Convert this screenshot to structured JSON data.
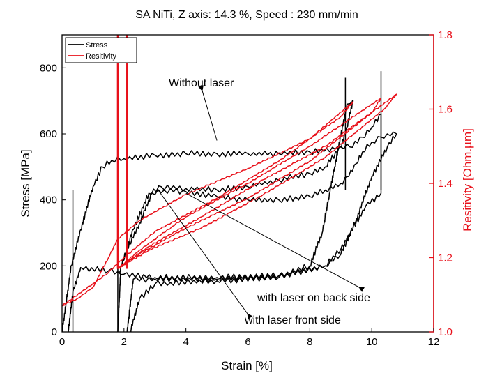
{
  "chart_data": {
    "type": "line",
    "title": "SA NiTi, Z axis: 14.3 %, Speed : 230 mm/min",
    "xlabel": "Strain [%]",
    "ylabel": "Stress [MPa]",
    "y2label": "Resitivity [Ohm.µm]",
    "xlim": [
      0,
      12
    ],
    "ylim": [
      0,
      900
    ],
    "y2lim": [
      1.0,
      1.8
    ],
    "xticks": [
      "0",
      "2",
      "4",
      "6",
      "8",
      "10",
      "12"
    ],
    "yticks": [
      "0",
      "200",
      "400",
      "600",
      "800"
    ],
    "y2ticks": [
      "1.0",
      "1.2",
      "1.4",
      "1.6",
      "1.8"
    ],
    "legend_position": "top-left",
    "grid": false,
    "colors": {
      "stress": "#000000",
      "resistivity": "#e8101a",
      "axis2": "#e8101a"
    },
    "series": [
      {
        "name": "Stress",
        "axis": "left",
        "color": "#000000",
        "curves": [
          [
            [
              0,
              0
            ],
            [
              0.3,
              200
            ],
            [
              0.6,
              310
            ],
            [
              1.0,
              440
            ],
            [
              1.3,
              500
            ],
            [
              1.6,
              520
            ],
            [
              2.0,
              525
            ],
            [
              3,
              535
            ],
            [
              4,
              540
            ],
            [
              5,
              540
            ],
            [
              6,
              540
            ],
            [
              7,
              540
            ],
            [
              8,
              545
            ],
            [
              9,
              560
            ],
            [
              9.3,
              560
            ],
            [
              9.7,
              590
            ],
            [
              10.0,
              620
            ],
            [
              10.3,
              660
            ],
            [
              10.3,
              420
            ],
            [
              9.8,
              380
            ],
            [
              9,
              250
            ],
            [
              8.5,
              200
            ],
            [
              7,
              170
            ],
            [
              5,
              165
            ],
            [
              3,
              165
            ],
            [
              2,
              175
            ],
            [
              1.5,
              185
            ],
            [
              0.6,
              195
            ],
            [
              0.35,
              120
            ],
            [
              0.2,
              0
            ]
          ],
          [
            [
              1.85,
              180
            ],
            [
              2.1,
              250
            ],
            [
              2.5,
              330
            ],
            [
              2.9,
              420
            ],
            [
              3.3,
              430
            ],
            [
              4,
              425
            ],
            [
              5,
              410
            ],
            [
              6,
              400
            ],
            [
              7,
              400
            ],
            [
              8,
              410
            ],
            [
              8.5,
              430
            ],
            [
              9,
              450
            ],
            [
              9.2,
              470
            ],
            [
              9.5,
              510
            ],
            [
              9.7,
              545
            ],
            [
              10.0,
              575
            ],
            [
              10.3,
              590
            ],
            [
              10.5,
              600
            ],
            [
              10.8,
              600
            ],
            [
              10.5,
              560
            ],
            [
              10.0,
              470
            ],
            [
              9.5,
              340
            ],
            [
              9.0,
              235
            ],
            [
              8.5,
              200
            ],
            [
              7,
              165
            ],
            [
              5,
              155
            ],
            [
              3.5,
              150
            ],
            [
              3,
              145
            ],
            [
              2.5,
              100
            ],
            [
              2.2,
              0
            ]
          ],
          [
            [
              1.8,
              0
            ],
            [
              1.9,
              200
            ],
            [
              2.3,
              310
            ],
            [
              2.8,
              420
            ],
            [
              3.2,
              440
            ],
            [
              4,
              435
            ],
            [
              5,
              430
            ],
            [
              6,
              440
            ],
            [
              7,
              460
            ],
            [
              8,
              480
            ],
            [
              8.5,
              500
            ],
            [
              9,
              560
            ],
            [
              9.2,
              620
            ],
            [
              9.4,
              700
            ],
            [
              9.2,
              690
            ],
            [
              8.8,
              500
            ],
            [
              8.4,
              300
            ],
            [
              8.0,
              200
            ],
            [
              7,
              170
            ],
            [
              5,
              160
            ],
            [
              3,
              160
            ],
            [
              2.3,
              160
            ],
            [
              2.1,
              0
            ]
          ]
        ],
        "spikes": [
          [
            9.15,
            770
          ],
          [
            10.3,
            790
          ],
          [
            1.8,
            0
          ],
          [
            0.35,
            0
          ]
        ]
      },
      {
        "name": "Resitivity",
        "axis": "right",
        "color": "#e8101a",
        "curves": [
          [
            [
              0,
              1.07
            ],
            [
              0.5,
              1.09
            ],
            [
              1,
              1.12
            ],
            [
              1.5,
              1.2
            ],
            [
              1.8,
              1.25
            ],
            [
              2.5,
              1.3
            ],
            [
              4,
              1.37
            ],
            [
              6,
              1.44
            ],
            [
              8,
              1.52
            ],
            [
              9.4,
              1.62
            ],
            [
              9.0,
              1.58
            ],
            [
              7,
              1.46
            ],
            [
              5,
              1.36
            ],
            [
              3,
              1.27
            ],
            [
              2,
              1.2
            ],
            [
              1.5,
              1.16
            ],
            [
              1,
              1.13
            ],
            [
              0,
              1.07
            ]
          ],
          [
            [
              1.8,
              1.17
            ],
            [
              2.5,
              1.22
            ],
            [
              4,
              1.31
            ],
            [
              6,
              1.4
            ],
            [
              8,
              1.5
            ],
            [
              10.3,
              1.63
            ],
            [
              10.0,
              1.59
            ],
            [
              8,
              1.46
            ],
            [
              6,
              1.36
            ],
            [
              4,
              1.28
            ],
            [
              2.5,
              1.21
            ],
            [
              1.8,
              1.17
            ]
          ],
          [
            [
              1.8,
              1.17
            ],
            [
              2.8,
              1.23
            ],
            [
              4.5,
              1.31
            ],
            [
              6.5,
              1.41
            ],
            [
              8.5,
              1.5
            ],
            [
              10.8,
              1.64
            ],
            [
              10.4,
              1.6
            ],
            [
              8.5,
              1.47
            ],
            [
              6.5,
              1.37
            ],
            [
              4.5,
              1.28
            ],
            [
              2.8,
              1.22
            ],
            [
              1.8,
              1.17
            ]
          ]
        ],
        "spikes": [
          [
            1.8,
            1.8
          ],
          [
            2.1,
            1.8
          ]
        ]
      }
    ],
    "annotations": [
      {
        "text": "Without laser",
        "target": [
          5.0,
          580
        ]
      },
      {
        "text": "with laser on back side",
        "target": [
          4.0,
          420
        ]
      },
      {
        "text": "with laser front side",
        "target": [
          3.1,
          430
        ]
      }
    ]
  }
}
